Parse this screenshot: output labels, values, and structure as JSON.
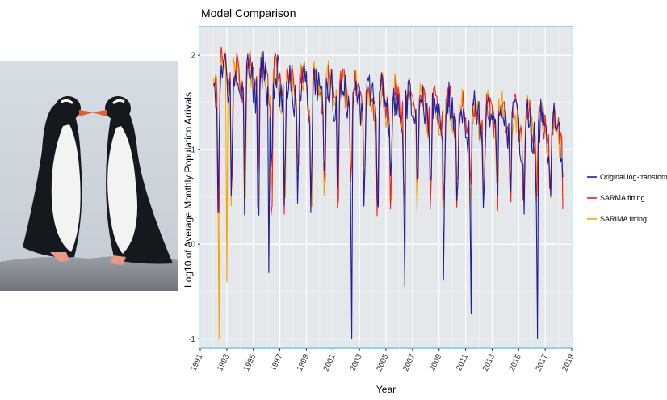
{
  "photo": {
    "subject": "two gentoo penguins facing each other on a rock"
  },
  "chart_data": {
    "type": "line",
    "title": "Model Comparison",
    "xlabel": "Year",
    "ylabel": "Log10 of Average Monthly Population Arrivals",
    "x_range": [
      1991,
      2019
    ],
    "ylim": [
      -1.1,
      2.3
    ],
    "x_ticks": [
      "1991",
      "1993",
      "1995",
      "1997",
      "1999",
      "2001",
      "2003",
      "2005",
      "2007",
      "2009",
      "2011",
      "2013",
      "2015",
      "2017",
      "2019"
    ],
    "y_ticks": [
      -1,
      0,
      1,
      2
    ],
    "grid": true,
    "legend_position": "right",
    "series": [
      {
        "name": "Original log-transformed",
        "color": "#1f1fa0"
      },
      {
        "name": "SARMA fitting",
        "color": "#ee2222"
      },
      {
        "name": "SARIMA fitting",
        "color": "#f5a300"
      }
    ],
    "note": "monthly series from 1992 to mid-2018; upper envelope declines from ~2.0 to ~1.4 with recurring annual dips",
    "notable_dips": [
      {
        "x": 1992.4,
        "series": "SARIMA fitting",
        "value": -1.0
      },
      {
        "x": 1993.0,
        "series": "SARIMA fitting",
        "value": -0.4
      },
      {
        "x": 1996.2,
        "series": "Original log-transformed",
        "value": -0.3
      },
      {
        "x": 2002.4,
        "series": "Original log-transformed",
        "value": -1.0
      },
      {
        "x": 2006.4,
        "series": "Original log-transformed",
        "value": -0.45
      },
      {
        "x": 2009.3,
        "series": "Original log-transformed",
        "value": -0.38
      },
      {
        "x": 2011.4,
        "series": "Original log-transformed",
        "value": -0.73
      },
      {
        "x": 2016.4,
        "series": "Original log-transformed",
        "value": -1.0
      }
    ]
  }
}
